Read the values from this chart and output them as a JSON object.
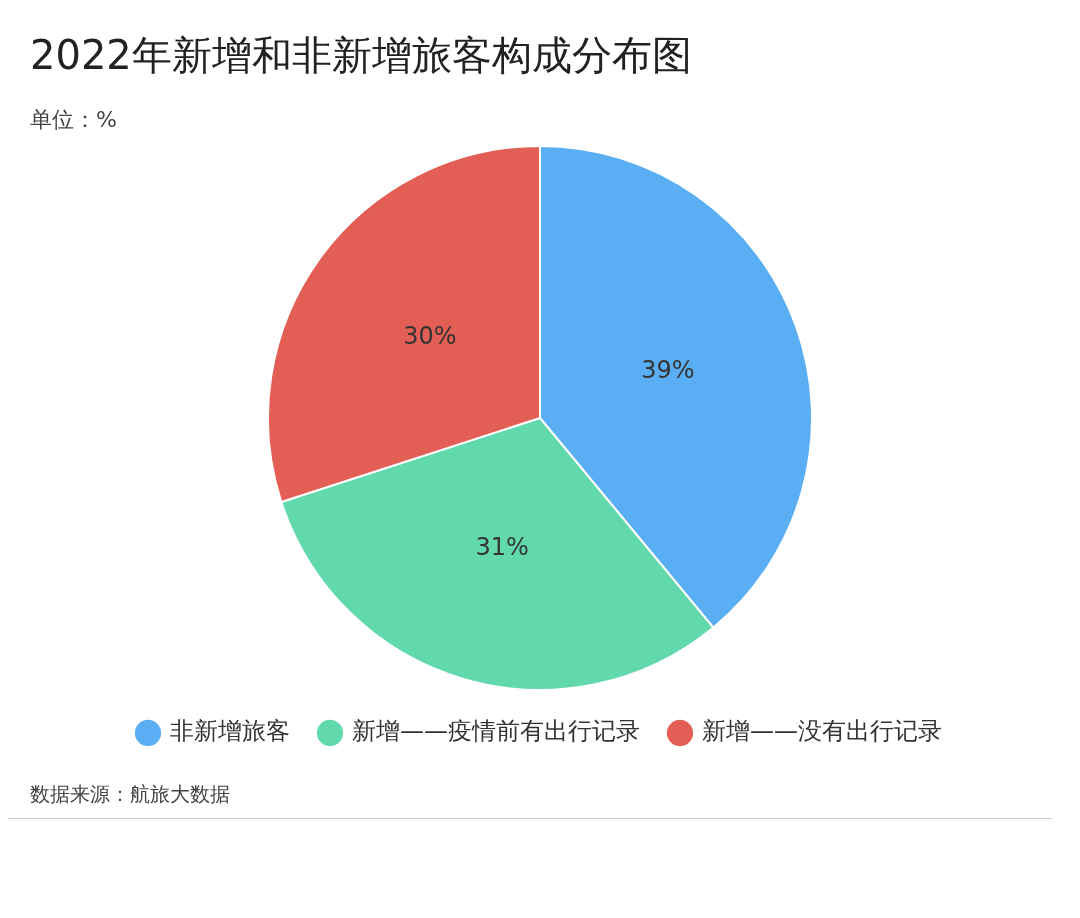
{
  "chart_data": {
    "type": "pie",
    "title": "2022年新增和非新增旅客构成分布图",
    "subtitle": "单位：%",
    "categories": [
      "非新增旅客",
      "新增——疫情前有出行记录",
      "新增——没有出行记录"
    ],
    "values": [
      39,
      31,
      30
    ],
    "colors": [
      "#5aaef3",
      "#62d9ad",
      "#e35f55"
    ],
    "value_labels": [
      "39%",
      "31%",
      "30%"
    ],
    "legend": "bottom",
    "annotations": [
      "数据来源：航旅大数据"
    ]
  }
}
